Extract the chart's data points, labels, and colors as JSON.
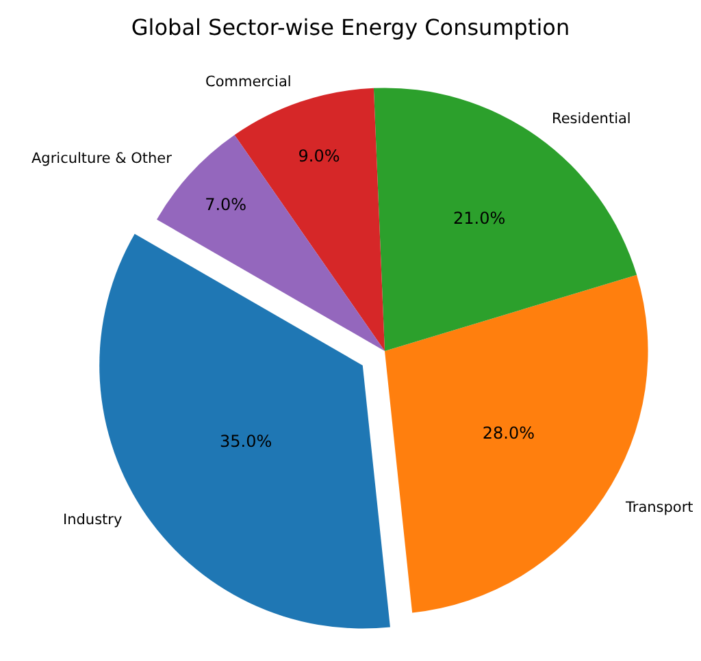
{
  "chart_data": {
    "type": "pie",
    "title": "Global Sector-wise Energy Consumption",
    "categories": [
      "Industry",
      "Transport",
      "Residential",
      "Commercial",
      "Agriculture & Other"
    ],
    "values": [
      35,
      28,
      21,
      9,
      7
    ],
    "colors": [
      "#1f77b4",
      "#ff7f0e",
      "#2ca02c",
      "#d62728",
      "#9467bd"
    ],
    "value_labels": [
      "35.0%",
      "28.0%",
      "21.0%",
      "9.0%",
      "7.0%"
    ],
    "legend": false
  }
}
